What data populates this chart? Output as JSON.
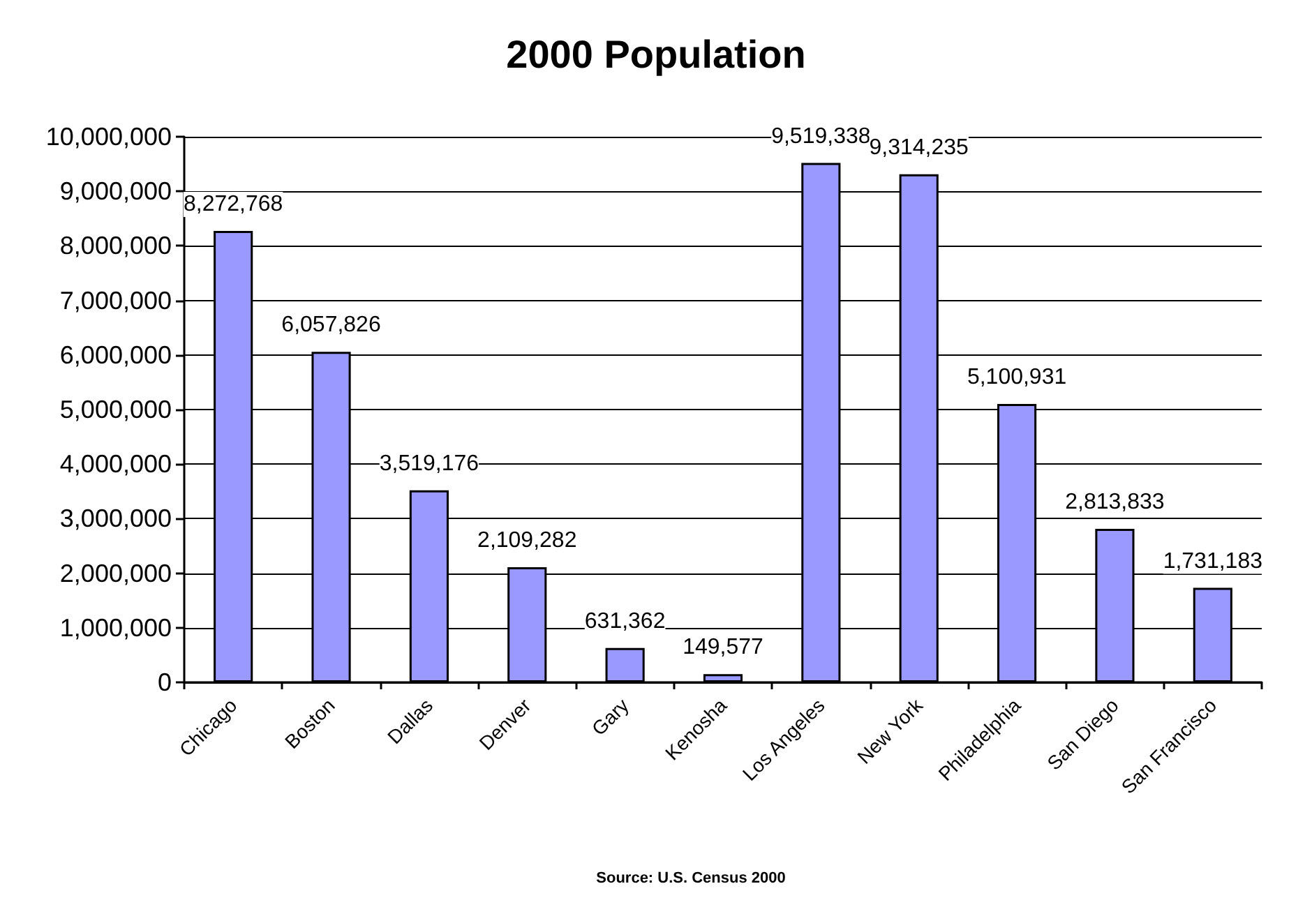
{
  "chart_data": {
    "type": "bar",
    "title": "2000 Population",
    "categories": [
      "Chicago",
      "Boston",
      "Dallas",
      "Denver",
      "Gary",
      "Kenosha",
      "Los Angeles",
      "New York",
      "Philadelphia",
      "San Diego",
      "San Francisco"
    ],
    "values": [
      8272768,
      6057826,
      3519176,
      2109282,
      631362,
      149577,
      9519338,
      9314235,
      5100931,
      2813833,
      1731183
    ],
    "value_labels": [
      "8,272,768",
      "6,057,826",
      "3,519,176",
      "2,109,282",
      "631,362",
      "149,577",
      "9,519,338",
      "9,314,235",
      "5,100,931",
      "2,813,833",
      "1,731,183"
    ],
    "color": "#9999ff",
    "ylim": [
      0,
      10000000
    ],
    "yticks": [
      {
        "value": 0,
        "label": "0"
      },
      {
        "value": 1000000,
        "label": "1,000,000"
      },
      {
        "value": 2000000,
        "label": "2,000,000"
      },
      {
        "value": 3000000,
        "label": "3,000,000"
      },
      {
        "value": 4000000,
        "label": "4,000,000"
      },
      {
        "value": 5000000,
        "label": "5,000,000"
      },
      {
        "value": 6000000,
        "label": "6,000,000"
      },
      {
        "value": 7000000,
        "label": "7,000,000"
      },
      {
        "value": 8000000,
        "label": "8,000,000"
      },
      {
        "value": 9000000,
        "label": "9,000,000"
      },
      {
        "value": 10000000,
        "label": "10,000,000"
      }
    ],
    "grid": "y",
    "annotations": [
      "Source: U.S. Census 2000"
    ]
  }
}
